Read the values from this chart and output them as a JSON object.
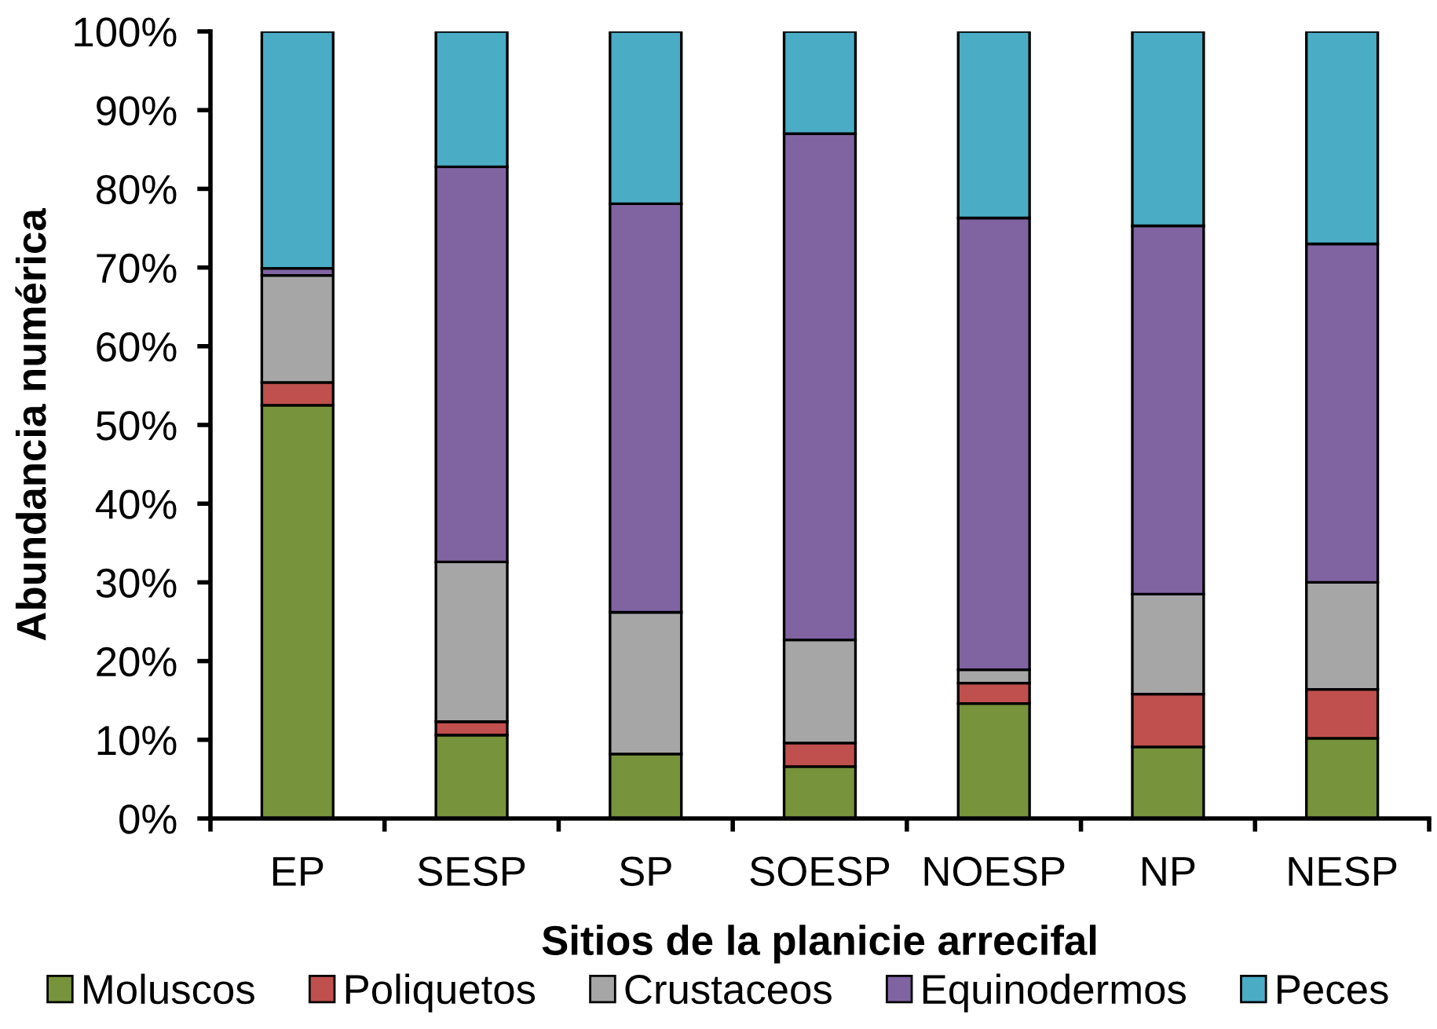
{
  "chart_data": {
    "type": "bar",
    "stacked": true,
    "xlabel": "Sitios de la planicie arrecifal",
    "ylabel": "Abundancia numérica",
    "categories": [
      "EP",
      "SESP",
      "SP",
      "SOESP",
      "NOESP",
      "NP",
      "NESP"
    ],
    "series": [
      {
        "name": "Moluscos",
        "color": "#77933c",
        "values": [
          52.5,
          10.6,
          8.2,
          6.6,
          14.6,
          9.1,
          10.2
        ]
      },
      {
        "name": "Poliquetos",
        "color": "#c0504d",
        "values": [
          2.9,
          1.7,
          0,
          3.0,
          2.6,
          6.7,
          6.2
        ]
      },
      {
        "name": "Crustaceos",
        "color": "#a6a6a6",
        "values": [
          13.6,
          20.3,
          18.0,
          13.1,
          1.7,
          12.7,
          13.6
        ]
      },
      {
        "name": "Equinodermos",
        "color": "#8064a2",
        "values": [
          0.9,
          50.2,
          51.9,
          64.3,
          57.4,
          46.8,
          43.0
        ]
      },
      {
        "name": "Peces",
        "color": "#4bacc6",
        "values": [
          30.1,
          17.2,
          21.9,
          13.0,
          23.7,
          24.7,
          27.0
        ]
      }
    ],
    "ylim": [
      0,
      100
    ],
    "yticks": [
      {
        "value": 0,
        "label": "0%"
      },
      {
        "value": 10,
        "label": "10%"
      },
      {
        "value": 20,
        "label": "20%"
      },
      {
        "value": 30,
        "label": "30%"
      },
      {
        "value": 40,
        "label": "40%"
      },
      {
        "value": 50,
        "label": "50%"
      },
      {
        "value": 60,
        "label": "60%"
      },
      {
        "value": 70,
        "label": "70%"
      },
      {
        "value": 80,
        "label": "80%"
      },
      {
        "value": 90,
        "label": "90%"
      },
      {
        "value": 100,
        "label": "100%"
      }
    ],
    "grid": false,
    "legend": "bottom"
  }
}
